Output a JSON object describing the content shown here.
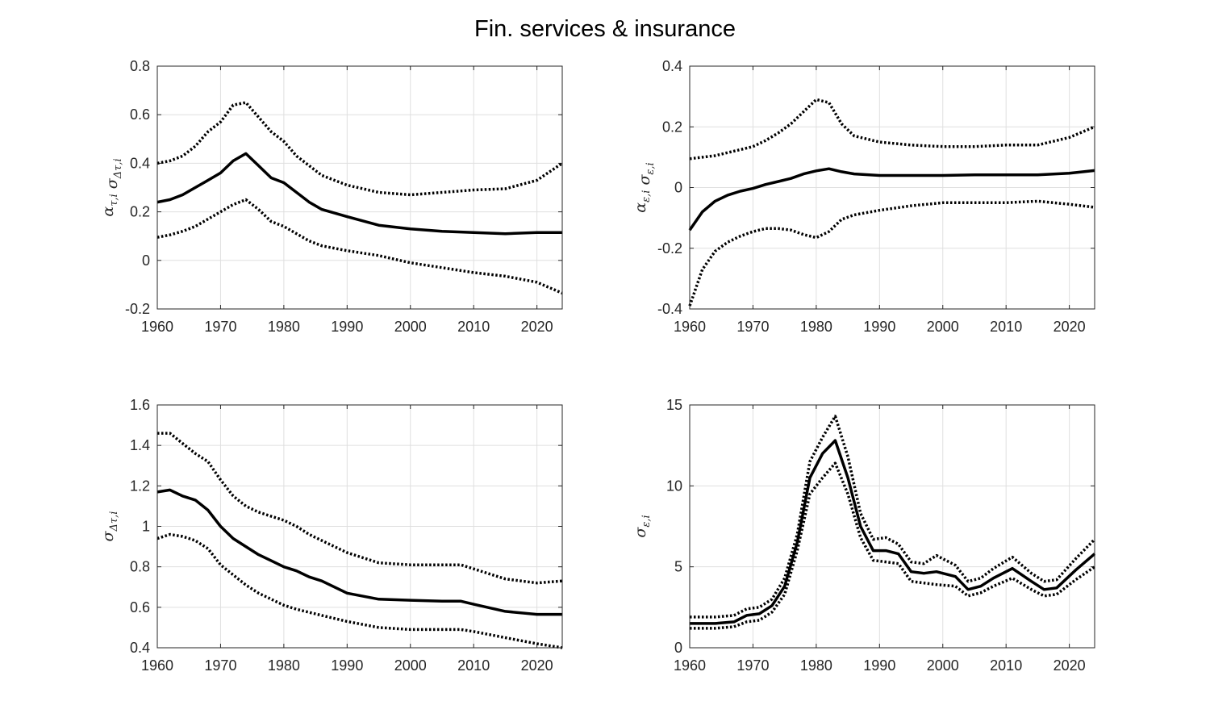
{
  "figure": {
    "title": "Fin. services & insurance"
  },
  "chart_data": [
    {
      "type": "line",
      "panel": "top-left",
      "ylabel": "α_{τ,i} σ_{Δτ,i}",
      "xlim": [
        1960,
        2024
      ],
      "ylim": [
        -0.2,
        0.8
      ],
      "xticks": [
        1960,
        1970,
        1980,
        1990,
        2000,
        2010,
        2020
      ],
      "yticks": [
        -0.2,
        0,
        0.2,
        0.4,
        0.6,
        0.8
      ],
      "ytick_labels": [
        "-0.2",
        "0",
        "0.2",
        "0.4",
        "0.6",
        "0.8"
      ],
      "grid": true,
      "series": [
        {
          "style": "solid",
          "x": [
            1960,
            1962,
            1964,
            1966,
            1968,
            1970,
            1972,
            1974,
            1976,
            1978,
            1980,
            1982,
            1984,
            1986,
            1990,
            1995,
            2000,
            2005,
            2010,
            2015,
            2020,
            2024
          ],
          "y": [
            0.24,
            0.25,
            0.27,
            0.3,
            0.33,
            0.36,
            0.41,
            0.44,
            0.39,
            0.34,
            0.32,
            0.28,
            0.24,
            0.21,
            0.18,
            0.145,
            0.13,
            0.12,
            0.115,
            0.11,
            0.115,
            0.115
          ]
        },
        {
          "style": "dotted",
          "x": [
            1960,
            1962,
            1964,
            1966,
            1968,
            1970,
            1972,
            1974,
            1976,
            1978,
            1980,
            1982,
            1984,
            1986,
            1990,
            1995,
            2000,
            2005,
            2010,
            2015,
            2020,
            2024
          ],
          "y": [
            0.4,
            0.41,
            0.43,
            0.47,
            0.53,
            0.57,
            0.64,
            0.65,
            0.59,
            0.53,
            0.49,
            0.43,
            0.39,
            0.35,
            0.31,
            0.28,
            0.27,
            0.28,
            0.29,
            0.295,
            0.33,
            0.4
          ]
        },
        {
          "style": "dotted",
          "x": [
            1960,
            1962,
            1964,
            1966,
            1968,
            1970,
            1972,
            1974,
            1976,
            1978,
            1980,
            1982,
            1984,
            1986,
            1990,
            1995,
            2000,
            2005,
            2010,
            2015,
            2020,
            2024
          ],
          "y": [
            0.095,
            0.105,
            0.12,
            0.14,
            0.17,
            0.2,
            0.23,
            0.25,
            0.21,
            0.16,
            0.14,
            0.11,
            0.08,
            0.06,
            0.04,
            0.02,
            -0.01,
            -0.03,
            -0.05,
            -0.065,
            -0.09,
            -0.135
          ]
        }
      ]
    },
    {
      "type": "line",
      "panel": "top-right",
      "ylabel": "α_{ε,i} σ_{ε,i}",
      "xlim": [
        1960,
        2024
      ],
      "ylim": [
        -0.4,
        0.4
      ],
      "xticks": [
        1960,
        1970,
        1980,
        1990,
        2000,
        2010,
        2020
      ],
      "yticks": [
        -0.4,
        -0.2,
        0,
        0.2,
        0.4
      ],
      "ytick_labels": [
        "-0.4",
        "-0.2",
        "0",
        "0.2",
        "0.4"
      ],
      "grid": true,
      "series": [
        {
          "style": "solid",
          "x": [
            1960,
            1962,
            1964,
            1966,
            1968,
            1970,
            1972,
            1974,
            1976,
            1978,
            1980,
            1982,
            1984,
            1986,
            1990,
            1995,
            2000,
            2005,
            2010,
            2015,
            2020,
            2024
          ],
          "y": [
            -0.14,
            -0.08,
            -0.045,
            -0.025,
            -0.012,
            -0.003,
            0.01,
            0.02,
            0.03,
            0.045,
            0.055,
            0.062,
            0.052,
            0.045,
            0.04,
            0.04,
            0.04,
            0.042,
            0.042,
            0.042,
            0.047,
            0.056
          ]
        },
        {
          "style": "dotted",
          "x": [
            1960,
            1962,
            1964,
            1966,
            1968,
            1970,
            1972,
            1974,
            1976,
            1978,
            1980,
            1982,
            1984,
            1986,
            1990,
            1995,
            2000,
            2005,
            2010,
            2015,
            2020,
            2024
          ],
          "y": [
            0.095,
            0.1,
            0.105,
            0.115,
            0.125,
            0.135,
            0.155,
            0.18,
            0.21,
            0.25,
            0.29,
            0.28,
            0.21,
            0.17,
            0.15,
            0.14,
            0.135,
            0.135,
            0.14,
            0.14,
            0.165,
            0.2
          ]
        },
        {
          "style": "dotted",
          "x": [
            1960,
            1962,
            1964,
            1966,
            1968,
            1970,
            1972,
            1974,
            1976,
            1978,
            1980,
            1982,
            1984,
            1986,
            1990,
            1995,
            2000,
            2005,
            2010,
            2015,
            2020,
            2024
          ],
          "y": [
            -0.39,
            -0.27,
            -0.21,
            -0.18,
            -0.16,
            -0.145,
            -0.135,
            -0.135,
            -0.14,
            -0.155,
            -0.165,
            -0.145,
            -0.105,
            -0.09,
            -0.075,
            -0.06,
            -0.05,
            -0.05,
            -0.05,
            -0.045,
            -0.055,
            -0.065
          ]
        }
      ]
    },
    {
      "type": "line",
      "panel": "bottom-left",
      "ylabel": "σ_{Δτ,i}",
      "xlim": [
        1960,
        2024
      ],
      "ylim": [
        0.4,
        1.6
      ],
      "xticks": [
        1960,
        1970,
        1980,
        1990,
        2000,
        2010,
        2020
      ],
      "yticks": [
        0.4,
        0.6,
        0.8,
        1,
        1.2,
        1.4,
        1.6
      ],
      "ytick_labels": [
        "0.4",
        "0.6",
        "0.8",
        "1",
        "1.2",
        "1.4",
        "1.6"
      ],
      "grid": true,
      "series": [
        {
          "style": "solid",
          "x": [
            1960,
            1962,
            1964,
            1966,
            1968,
            1970,
            1972,
            1974,
            1976,
            1978,
            1980,
            1982,
            1984,
            1986,
            1990,
            1995,
            2000,
            2005,
            2008,
            2010,
            2015,
            2020,
            2024
          ],
          "y": [
            1.17,
            1.18,
            1.15,
            1.13,
            1.08,
            1.0,
            0.94,
            0.9,
            0.86,
            0.83,
            0.8,
            0.78,
            0.75,
            0.73,
            0.67,
            0.64,
            0.635,
            0.63,
            0.63,
            0.615,
            0.58,
            0.565,
            0.565
          ]
        },
        {
          "style": "dotted",
          "x": [
            1960,
            1962,
            1964,
            1966,
            1968,
            1970,
            1972,
            1974,
            1976,
            1978,
            1980,
            1982,
            1984,
            1986,
            1990,
            1995,
            2000,
            2005,
            2008,
            2010,
            2015,
            2020,
            2024
          ],
          "y": [
            1.46,
            1.46,
            1.41,
            1.36,
            1.32,
            1.23,
            1.15,
            1.1,
            1.07,
            1.05,
            1.03,
            1.0,
            0.96,
            0.93,
            0.87,
            0.82,
            0.81,
            0.81,
            0.81,
            0.79,
            0.74,
            0.72,
            0.73
          ]
        },
        {
          "style": "dotted",
          "x": [
            1960,
            1962,
            1964,
            1966,
            1968,
            1970,
            1972,
            1974,
            1976,
            1978,
            1980,
            1982,
            1984,
            1986,
            1990,
            1995,
            2000,
            2005,
            2008,
            2010,
            2015,
            2020,
            2024
          ],
          "y": [
            0.94,
            0.96,
            0.95,
            0.93,
            0.89,
            0.81,
            0.76,
            0.71,
            0.67,
            0.64,
            0.61,
            0.59,
            0.575,
            0.56,
            0.53,
            0.5,
            0.49,
            0.49,
            0.49,
            0.48,
            0.45,
            0.42,
            0.4
          ]
        }
      ]
    },
    {
      "type": "line",
      "panel": "bottom-right",
      "ylabel": "σ_{ε,i}",
      "xlim": [
        1960,
        2024
      ],
      "ylim": [
        0,
        15
      ],
      "xticks": [
        1960,
        1970,
        1980,
        1990,
        2000,
        2010,
        2020
      ],
      "yticks": [
        0,
        5,
        10,
        15
      ],
      "ytick_labels": [
        "0",
        "5",
        "10",
        "15"
      ],
      "grid": true,
      "series": [
        {
          "style": "solid",
          "x": [
            1960,
            1964,
            1967,
            1969,
            1971,
            1973,
            1975,
            1977,
            1979,
            1981,
            1983,
            1985,
            1987,
            1989,
            1991,
            1993,
            1995,
            1997,
            1999,
            2002,
            2004,
            2006,
            2008,
            2011,
            2014,
            2016,
            2018,
            2021,
            2024
          ],
          "y": [
            1.5,
            1.5,
            1.6,
            2.0,
            2.1,
            2.6,
            3.8,
            6.5,
            10.5,
            12.0,
            12.8,
            10.5,
            7.5,
            6.0,
            6.0,
            5.8,
            4.7,
            4.6,
            4.7,
            4.4,
            3.6,
            3.8,
            4.3,
            4.9,
            4.1,
            3.6,
            3.7,
            4.8,
            5.8
          ]
        },
        {
          "style": "dotted",
          "x": [
            1960,
            1964,
            1967,
            1969,
            1971,
            1973,
            1975,
            1977,
            1979,
            1981,
            1983,
            1985,
            1987,
            1989,
            1991,
            1993,
            1995,
            1997,
            1999,
            2002,
            2004,
            2006,
            2008,
            2011,
            2014,
            2016,
            2018,
            2021,
            2024
          ],
          "y": [
            1.9,
            1.9,
            2.0,
            2.4,
            2.5,
            3.0,
            4.3,
            7.0,
            11.5,
            13.0,
            14.3,
            11.8,
            8.3,
            6.7,
            6.8,
            6.4,
            5.3,
            5.2,
            5.7,
            5.1,
            4.1,
            4.3,
            4.9,
            5.6,
            4.6,
            4.1,
            4.2,
            5.5,
            6.7
          ]
        },
        {
          "style": "dotted",
          "x": [
            1960,
            1964,
            1967,
            1969,
            1971,
            1973,
            1975,
            1977,
            1979,
            1981,
            1983,
            1985,
            1987,
            1989,
            1991,
            1993,
            1995,
            1997,
            1999,
            2002,
            2004,
            2006,
            2008,
            2011,
            2014,
            2016,
            2018,
            2021,
            2024
          ],
          "y": [
            1.2,
            1.2,
            1.3,
            1.6,
            1.7,
            2.2,
            3.3,
            6.0,
            9.5,
            10.5,
            11.4,
            9.5,
            6.8,
            5.4,
            5.3,
            5.2,
            4.1,
            4.0,
            3.9,
            3.8,
            3.2,
            3.4,
            3.8,
            4.3,
            3.6,
            3.2,
            3.3,
            4.2,
            5.0
          ]
        }
      ]
    }
  ]
}
